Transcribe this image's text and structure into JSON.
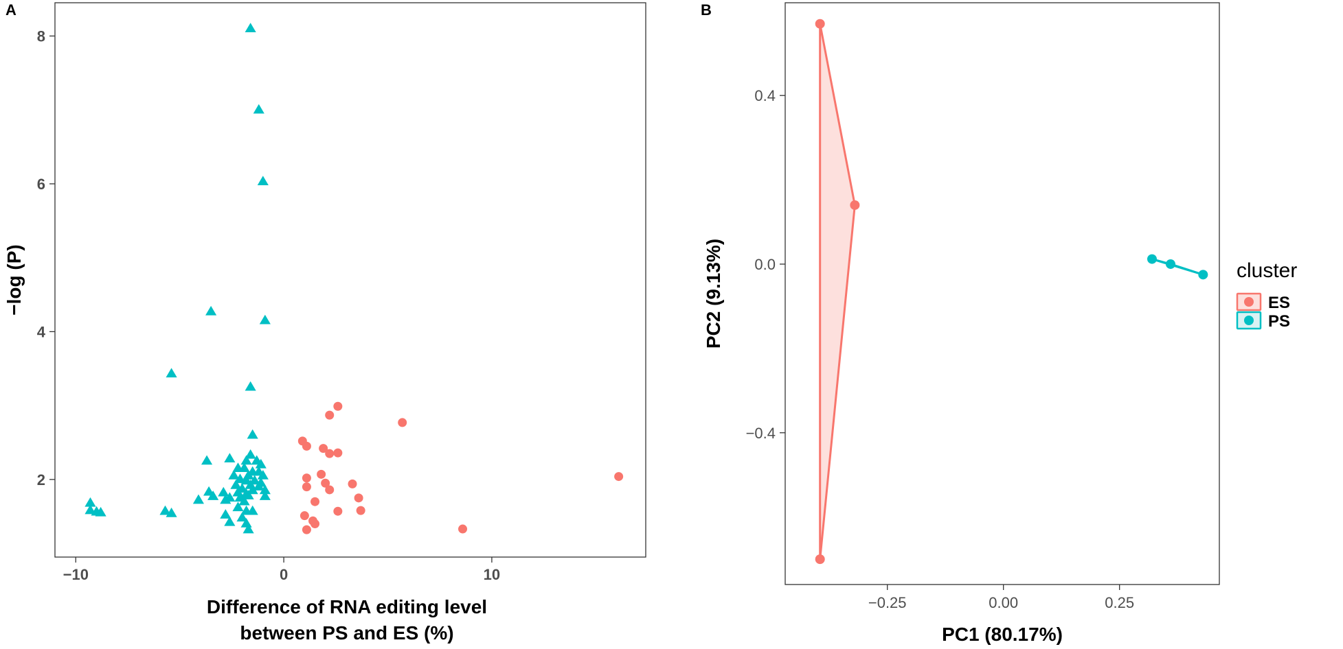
{
  "chart_data": [
    {
      "panel": "A",
      "type": "scatter",
      "title": "",
      "xlabel_line1": "Difference of RNA editing level",
      "xlabel_line2": "between  PS  and  ES  (%)",
      "ylabel": "−log (P)",
      "xlim": [
        -11,
        17.4
      ],
      "ylim": [
        0.95,
        8.45
      ],
      "xticks": [
        {
          "value": -10,
          "label": "−10"
        },
        {
          "value": 0,
          "label": "0"
        },
        {
          "value": 10,
          "label": "10"
        }
      ],
      "yticks": [
        {
          "value": 2,
          "label": "2"
        },
        {
          "value": 4,
          "label": "4"
        },
        {
          "value": 6,
          "label": "6"
        },
        {
          "value": 8,
          "label": "8"
        }
      ],
      "grid": false,
      "series": [
        {
          "marker": "triangle",
          "color": "#00BFC4",
          "points": [
            [
              -1.6,
              8.1
            ],
            [
              -1.2,
              7.0
            ],
            [
              -1.0,
              6.03
            ],
            [
              -0.9,
              4.15
            ],
            [
              -3.5,
              4.27
            ],
            [
              -5.4,
              3.43
            ],
            [
              -1.6,
              3.25
            ],
            [
              -1.5,
              2.6
            ],
            [
              -3.7,
              2.25
            ],
            [
              -2.6,
              2.28
            ],
            [
              -1.8,
              2.25
            ],
            [
              -1.6,
              2.33
            ],
            [
              -1.3,
              2.25
            ],
            [
              -1.1,
              2.2
            ],
            [
              -2.2,
              2.15
            ],
            [
              -1.9,
              2.15
            ],
            [
              -1.5,
              2.1
            ],
            [
              -1.2,
              2.1
            ],
            [
              -2.4,
              2.05
            ],
            [
              -1.7,
              2.05
            ],
            [
              -1.0,
              2.05
            ],
            [
              -2.1,
              2.0
            ],
            [
              -1.8,
              1.98
            ],
            [
              -1.4,
              1.98
            ],
            [
              -1.1,
              1.95
            ],
            [
              -2.3,
              1.92
            ],
            [
              -1.6,
              1.92
            ],
            [
              -1.2,
              1.9
            ],
            [
              -2.0,
              1.87
            ],
            [
              -1.5,
              1.85
            ],
            [
              -0.9,
              1.85
            ],
            [
              -2.2,
              1.82
            ],
            [
              -1.8,
              1.8
            ],
            [
              -3.6,
              1.83
            ],
            [
              -3.4,
              1.77
            ],
            [
              -2.9,
              1.82
            ],
            [
              -2.6,
              1.75
            ],
            [
              -2.1,
              1.75
            ],
            [
              -1.7,
              1.78
            ],
            [
              -0.9,
              1.77
            ],
            [
              -4.1,
              1.72
            ],
            [
              -2.8,
              1.72
            ],
            [
              -1.9,
              1.7
            ],
            [
              -2.2,
              1.62
            ],
            [
              -1.8,
              1.57
            ],
            [
              -1.5,
              1.57
            ],
            [
              -2.8,
              1.52
            ],
            [
              -2.0,
              1.48
            ],
            [
              -2.6,
              1.42
            ],
            [
              -1.8,
              1.4
            ],
            [
              -1.7,
              1.32
            ],
            [
              -9.3,
              1.68
            ],
            [
              -9.3,
              1.58
            ],
            [
              -9.0,
              1.56
            ],
            [
              -8.8,
              1.55
            ],
            [
              -5.7,
              1.57
            ],
            [
              -5.4,
              1.54
            ]
          ]
        },
        {
          "marker": "circle",
          "color": "#F8766D",
          "points": [
            [
              16.1,
              2.04
            ],
            [
              5.7,
              2.77
            ],
            [
              2.6,
              2.99
            ],
            [
              2.2,
              2.87
            ],
            [
              0.9,
              2.52
            ],
            [
              1.1,
              2.45
            ],
            [
              1.9,
              2.42
            ],
            [
              2.2,
              2.35
            ],
            [
              2.6,
              2.36
            ],
            [
              1.8,
              2.07
            ],
            [
              1.1,
              2.02
            ],
            [
              2.0,
              1.95
            ],
            [
              3.3,
              1.94
            ],
            [
              1.1,
              1.9
            ],
            [
              2.2,
              1.86
            ],
            [
              3.6,
              1.75
            ],
            [
              1.5,
              1.7
            ],
            [
              2.6,
              1.57
            ],
            [
              3.7,
              1.58
            ],
            [
              1.0,
              1.51
            ],
            [
              1.4,
              1.44
            ],
            [
              1.5,
              1.4
            ],
            [
              1.1,
              1.32
            ],
            [
              8.6,
              1.33
            ]
          ]
        }
      ]
    },
    {
      "panel": "B",
      "type": "scatter",
      "title": "",
      "xlabel": "PC1 (80.17%)",
      "ylabel": "PC2 (9.13%)",
      "xlim": [
        -0.47,
        0.465
      ],
      "ylim": [
        -0.76,
        0.62
      ],
      "xticks": [
        {
          "value": -0.25,
          "label": "−0.25"
        },
        {
          "value": 0,
          "label": "0.00"
        },
        {
          "value": 0.25,
          "label": "0.25"
        }
      ],
      "yticks": [
        {
          "value": -0.4,
          "label": "−0.4"
        },
        {
          "value": 0,
          "label": "0.0"
        },
        {
          "value": 0.4,
          "label": "0.4"
        }
      ],
      "grid": false,
      "legend": {
        "title": "cluster",
        "position": "right",
        "entries": [
          {
            "name": "ES",
            "color": "#F8766D",
            "fill": "#FDE0DD"
          },
          {
            "name": "PS",
            "color": "#00BFC4",
            "fill": "#D9F2F3"
          }
        ]
      },
      "series": [
        {
          "name": "ES",
          "color": "#F8766D",
          "fill": "#FDE0DD",
          "hull": true,
          "points": [
            [
              -0.395,
              0.57
            ],
            [
              -0.32,
              0.14
            ],
            [
              -0.395,
              -0.7
            ]
          ]
        },
        {
          "name": "PS",
          "color": "#00BFC4",
          "fill": "#D9F2F3",
          "hull": true,
          "points": [
            [
              0.32,
              0.012
            ],
            [
              0.36,
              0.0
            ],
            [
              0.43,
              -0.025
            ]
          ]
        }
      ]
    }
  ]
}
